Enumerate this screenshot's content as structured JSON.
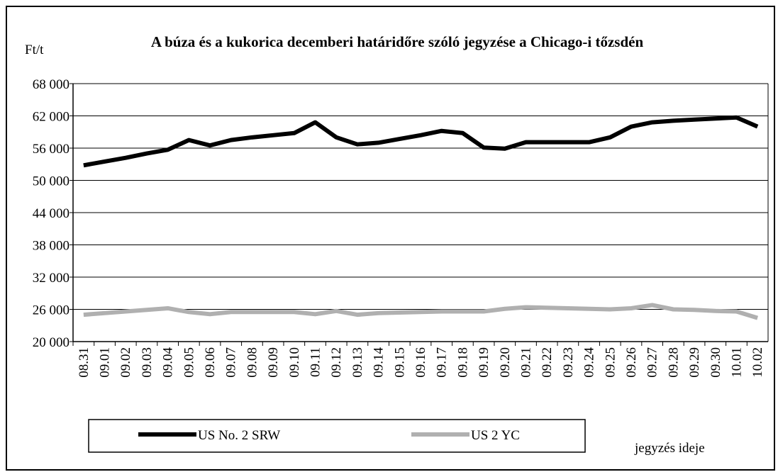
{
  "chart_data": {
    "type": "line",
    "title": "A búza és a kukorica decemberi határidőre szóló jegyzése a Chicago-i tőzsdén",
    "y_axis_label": "Ft/t",
    "x_axis_label": "jegyzés ideje",
    "categories": [
      "08.31",
      "09.01",
      "09.02",
      "09.03",
      "09.04",
      "09.05",
      "09.06",
      "09.07",
      "09.08",
      "09.09",
      "09.10",
      "09.11",
      "09.12",
      "09.13",
      "09.14",
      "09.15",
      "09.16",
      "09.17",
      "09.18",
      "09.19",
      "09.20",
      "09.21",
      "09.22",
      "09.23",
      "09.24",
      "09.25",
      "09.26",
      "09.27",
      "09.28",
      "09.29",
      "09.30",
      "10.01",
      "10.02"
    ],
    "series": [
      {
        "name": "US No. 2 SRW",
        "color": "#000000",
        "values": [
          52800,
          53500,
          54200,
          55000,
          55700,
          57500,
          56500,
          57500,
          58000,
          58400,
          58800,
          60800,
          58000,
          56700,
          57000,
          57700,
          58400,
          59200,
          58800,
          56100,
          55900,
          57100,
          57100,
          57100,
          57100,
          58000,
          60000,
          60800,
          61100,
          61300,
          61500,
          61700,
          60000
        ]
      },
      {
        "name": "US 2 YC",
        "color": "#b0b0b0",
        "values": [
          25000,
          25300,
          25600,
          25900,
          26200,
          25500,
          25100,
          25500,
          25500,
          25500,
          25500,
          25100,
          25700,
          25000,
          25300,
          25400,
          25500,
          25600,
          25600,
          25600,
          26100,
          26400,
          26300,
          26200,
          26100,
          26000,
          26200,
          26800,
          26000,
          25900,
          25700,
          25600,
          24400
        ]
      }
    ],
    "ylim": [
      20000,
      68000
    ],
    "yticks": [
      {
        "value": 20000,
        "label": "20 000"
      },
      {
        "value": 26000,
        "label": "26 000"
      },
      {
        "value": 32000,
        "label": "32 000"
      },
      {
        "value": 38000,
        "label": "38 000"
      },
      {
        "value": 44000,
        "label": "44 000"
      },
      {
        "value": 50000,
        "label": "50 000"
      },
      {
        "value": 56000,
        "label": "56 000"
      },
      {
        "value": 62000,
        "label": "62 000"
      },
      {
        "value": 68000,
        "label": "68 000"
      }
    ],
    "grid": true
  }
}
